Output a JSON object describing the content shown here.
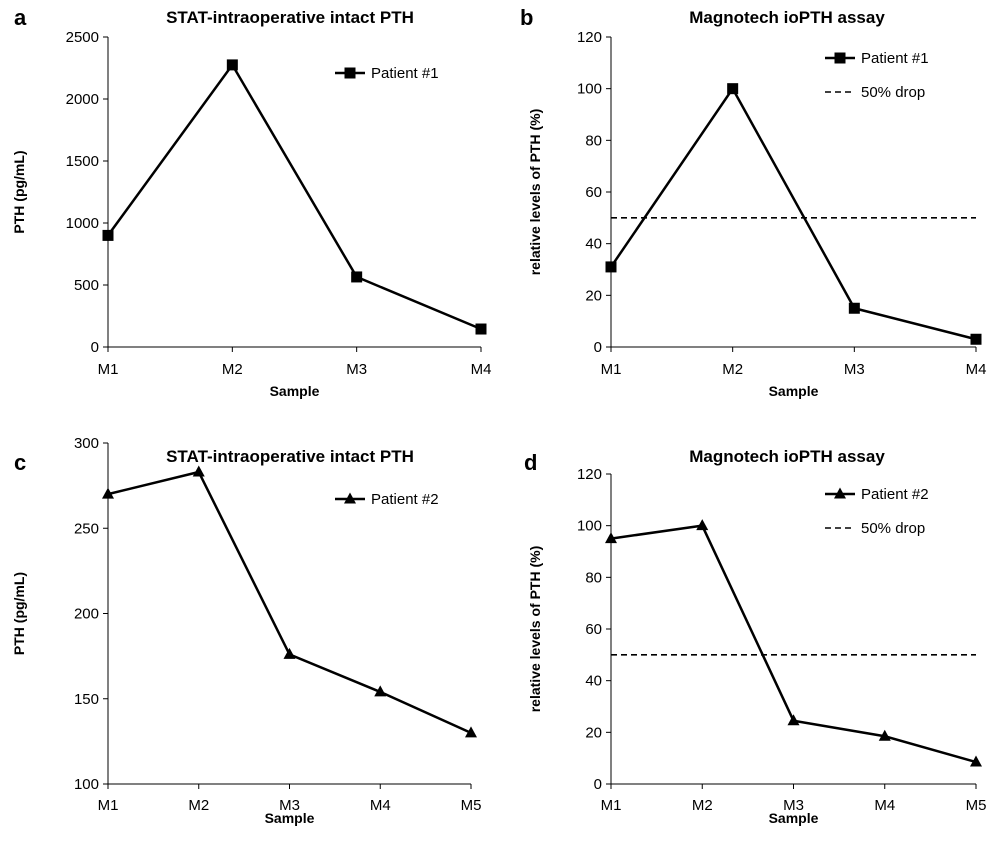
{
  "chart_data": [
    {
      "panel": "a",
      "type": "line",
      "title": "STAT-intraoperative intact PTH",
      "xlabel": "Sample",
      "ylabel": "PTH (pg/mL)",
      "categories": [
        "M1",
        "M2",
        "M3",
        "M4"
      ],
      "ylim": [
        0,
        2500
      ],
      "yticks": [
        0,
        500,
        1000,
        1500,
        2000,
        2500
      ],
      "grid": false,
      "legend_position": "top-right",
      "series": [
        {
          "name": "Patient #1",
          "marker": "square",
          "values": [
            900,
            2275,
            565,
            145
          ]
        }
      ],
      "reference_lines": []
    },
    {
      "panel": "b",
      "type": "line",
      "title": "Magnotech ioPTH assay",
      "xlabel": "Sample",
      "ylabel": "relative levels of PTH (%)",
      "categories": [
        "M1",
        "M2",
        "M3",
        "M4"
      ],
      "ylim": [
        0,
        120
      ],
      "yticks": [
        0,
        20,
        40,
        60,
        80,
        100,
        120
      ],
      "grid": false,
      "legend_position": "top-right",
      "series": [
        {
          "name": "Patient #1",
          "marker": "square",
          "values": [
            31,
            100,
            15,
            3
          ]
        }
      ],
      "reference_lines": [
        {
          "name": "50% drop",
          "value": 50
        }
      ]
    },
    {
      "panel": "c",
      "type": "line",
      "title": "STAT-intraoperative intact PTH",
      "xlabel": "Sample",
      "ylabel": "PTH (pg/mL)",
      "categories": [
        "M1",
        "M2",
        "M3",
        "M4",
        "M5"
      ],
      "ylim": [
        100,
        300
      ],
      "yticks": [
        100,
        150,
        200,
        250,
        300
      ],
      "grid": false,
      "legend_position": "top-right",
      "series": [
        {
          "name": "Patient #2",
          "marker": "triangle",
          "values": [
            270,
            283,
            176,
            154,
            130
          ]
        }
      ],
      "reference_lines": []
    },
    {
      "panel": "d",
      "type": "line",
      "title": "Magnotech ioPTH assay",
      "xlabel": "Sample",
      "ylabel": "relative levels of PTH (%)",
      "categories": [
        "M1",
        "M2",
        "M3",
        "M4",
        "M5"
      ],
      "ylim": [
        0,
        120
      ],
      "yticks": [
        0,
        20,
        40,
        60,
        80,
        100,
        120
      ],
      "grid": false,
      "legend_position": "top-right",
      "series": [
        {
          "name": "Patient #2",
          "marker": "triangle",
          "values": [
            95,
            100,
            24.5,
            18.5,
            8.5
          ]
        }
      ],
      "reference_lines": [
        {
          "name": "50% drop",
          "value": 50
        }
      ]
    }
  ]
}
